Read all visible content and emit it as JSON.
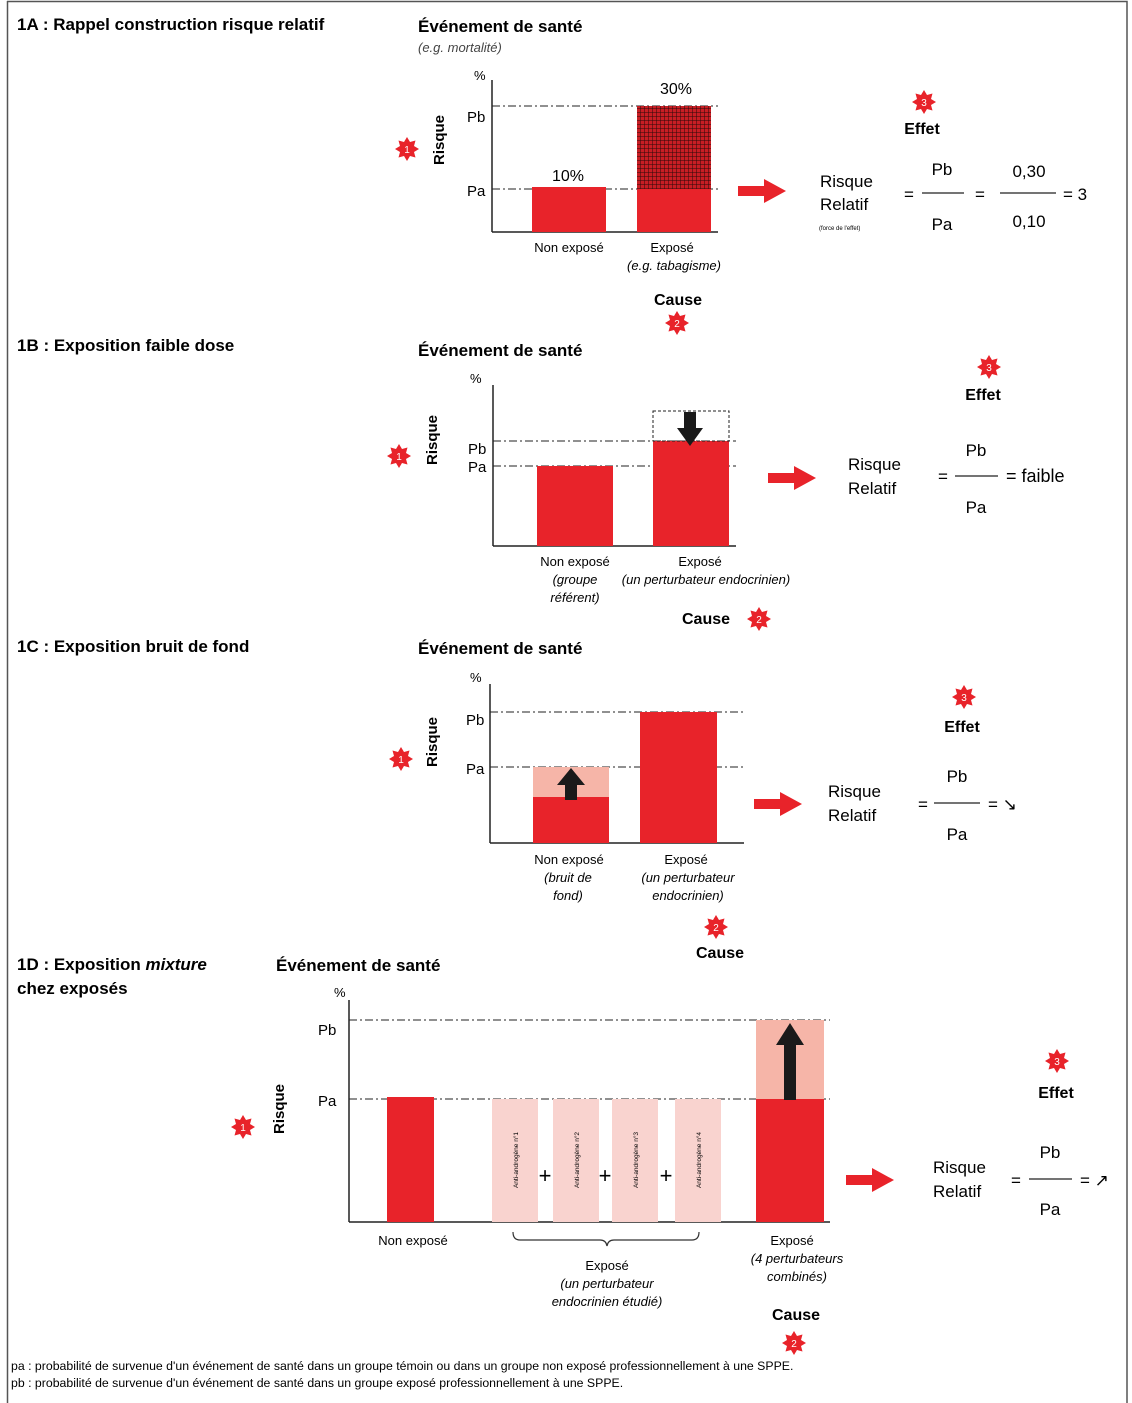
{
  "colors": {
    "red": "#e8232a",
    "pink": "#f6b5a8",
    "lightpink": "#f9d3cf",
    "dark": "#1a1a1a"
  },
  "icons": {
    "marker": "star-burst-badge-icon",
    "arrow": "red-right-arrow-icon"
  },
  "p1a": {
    "title": "1A : Rappel construction risque relatif",
    "event": "Événement de santé",
    "event_sub": "(e.g. mortalité)",
    "percent": "%",
    "risque": "Risque",
    "pb": "Pb",
    "pa": "Pa",
    "val_a": "10%",
    "val_b": "30%",
    "x1": "Non exposé",
    "x2": "Exposé",
    "x2_sub": "(e.g. tabagisme)",
    "cause": "Cause",
    "effet": "Effet",
    "rr1": "Risque",
    "rr2": "Relatif",
    "rr_note": "(force de l'effet)",
    "eq1": "=",
    "num1": "Pb",
    "den1": "Pa",
    "eq2": "=",
    "num2": "0,30",
    "den2": "0,10",
    "result": "= 3",
    "badge1": "1",
    "badge2": "2",
    "badge3": "3"
  },
  "p1b": {
    "title": "1B : Exposition faible dose",
    "event": "Événement de santé",
    "percent": "%",
    "risque": "Risque",
    "pb": "Pb",
    "pa": "Pa",
    "x1a": "Non exposé",
    "x1b": "(groupe",
    "x1c": "référent)",
    "x2a": "Exposé",
    "x2b": "(un perturbateur endocrinien)",
    "cause": "Cause",
    "effet": "Effet",
    "rr1": "Risque",
    "rr2": "Relatif",
    "eq": "=",
    "num": "Pb",
    "den": "Pa",
    "result": "=  faible",
    "badge1": "1",
    "badge2": "2",
    "badge3": "3"
  },
  "p1c": {
    "title": "1C : Exposition bruit de fond",
    "event": "Événement de santé",
    "percent": "%",
    "risque": "Risque",
    "pb": "Pb",
    "pa": "Pa",
    "x1a": "Non exposé",
    "x1b": "(bruit de",
    "x1c": "fond)",
    "x2a": "Exposé",
    "x2b": "(un perturbateur",
    "x2c": "endocrinien)",
    "cause": "Cause",
    "effet": "Effet",
    "rr1": "Risque",
    "rr2": "Relatif",
    "eq": "=",
    "num": "Pb",
    "den": "Pa",
    "result": "=  ↘",
    "badge1": "1",
    "badge2": "2",
    "badge3": "3"
  },
  "p1d": {
    "title_a": "1D : Exposition ",
    "title_b": "mixture",
    "title_c": "chez exposés",
    "event": "Événement de santé",
    "percent": "%",
    "risque": "Risque",
    "pb": "Pb",
    "pa": "Pa",
    "anti": [
      "Anti-androgène n°1",
      "Anti-androgène n°2",
      "Anti-androgène n°3",
      "Anti-androgène n°4"
    ],
    "plus": "+",
    "x1": "Non exposé",
    "mid_a": "Exposé",
    "mid_b": "(un perturbateur",
    "mid_c": "endocrinien étudié)",
    "x3a": "Exposé",
    "x3b": "(4 perturbateurs",
    "x3c": "combinés)",
    "cause": "Cause",
    "effet": "Effet",
    "rr1": "Risque",
    "rr2": "Relatif",
    "eq": "=",
    "num": "Pb",
    "den": "Pa",
    "result": "=  ↗",
    "badge1": "1",
    "badge2": "2",
    "badge3": "3"
  },
  "footer": {
    "pa": "pa : probabilité de survenue d'un événement de santé dans un groupe témoin ou dans un groupe non exposé professionnellement  à une SPPE.",
    "pb": "pb : probabilité de survenue d'un événement de santé dans un groupe exposé professionnellement à une SPPE."
  }
}
